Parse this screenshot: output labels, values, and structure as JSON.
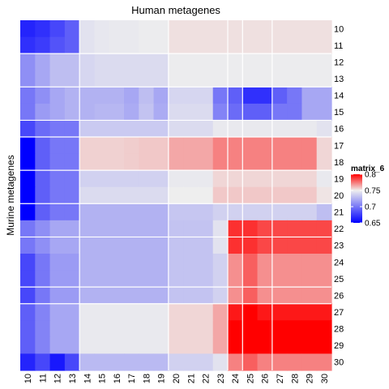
{
  "chart_data": {
    "type": "heatmap",
    "title": "Human metagenes",
    "ylabel": "Murine metagenes",
    "x_labels": [
      "10",
      "11",
      "12",
      "13",
      "14",
      "15",
      "16",
      "17",
      "18",
      "19",
      "20",
      "21",
      "22",
      "23",
      "24",
      "25",
      "26",
      "27",
      "28",
      "29",
      "30"
    ],
    "y_labels": [
      "10",
      "11",
      "12",
      "13",
      "14",
      "15",
      "16",
      "17",
      "18",
      "19",
      "20",
      "21",
      "22",
      "23",
      "24",
      "25",
      "26",
      "27",
      "28",
      "29",
      "30"
    ],
    "legend": {
      "title": "matrix_6",
      "breaks": [
        "0.8",
        "0.75",
        "0.7",
        "0.65"
      ],
      "range": [
        0.65,
        0.8
      ],
      "colors": {
        "low": "#0000ff",
        "mid": "#eeeeee",
        "high": "#ff0000"
      },
      "mid_value": 0.75
    },
    "column_groups": [
      [
        0,
        3
      ],
      [
        4,
        9
      ],
      [
        10,
        13
      ],
      [
        14,
        14
      ],
      [
        15,
        16
      ],
      [
        17,
        20
      ]
    ],
    "row_groups": [
      [
        0,
        1
      ],
      [
        2,
        3
      ],
      [
        4,
        5
      ],
      [
        6,
        6
      ],
      [
        7,
        8
      ],
      [
        9,
        10
      ],
      [
        11,
        12
      ],
      [
        13,
        15
      ],
      [
        16,
        16
      ],
      [
        17,
        19
      ]
    ],
    "values": [
      [
        0.665,
        0.67,
        0.68,
        0.69,
        0.745,
        0.747,
        0.748,
        0.748,
        0.749,
        0.749,
        0.753,
        0.753,
        0.753,
        0.753,
        0.753,
        0.753,
        0.753,
        0.753,
        0.753,
        0.753,
        0.753
      ],
      [
        0.67,
        0.675,
        0.685,
        0.69,
        0.745,
        0.747,
        0.748,
        0.748,
        0.749,
        0.749,
        0.753,
        0.753,
        0.753,
        0.753,
        0.753,
        0.753,
        0.753,
        0.753,
        0.753,
        0.753,
        0.753
      ],
      [
        0.71,
        0.72,
        0.73,
        0.73,
        0.74,
        0.742,
        0.742,
        0.742,
        0.742,
        0.742,
        0.749,
        0.749,
        0.749,
        0.749,
        0.749,
        0.749,
        0.749,
        0.749,
        0.749,
        0.749,
        0.749
      ],
      [
        0.71,
        0.72,
        0.73,
        0.73,
        0.74,
        0.742,
        0.742,
        0.742,
        0.742,
        0.742,
        0.749,
        0.749,
        0.749,
        0.749,
        0.749,
        0.749,
        0.749,
        0.749,
        0.749,
        0.749,
        0.749
      ],
      [
        0.7,
        0.71,
        0.72,
        0.725,
        0.725,
        0.725,
        0.725,
        0.72,
        0.73,
        0.72,
        0.74,
        0.74,
        0.74,
        0.7,
        0.69,
        0.67,
        0.67,
        0.69,
        0.7,
        0.72,
        0.72
      ],
      [
        0.7,
        0.715,
        0.72,
        0.725,
        0.725,
        0.727,
        0.727,
        0.722,
        0.732,
        0.722,
        0.742,
        0.742,
        0.742,
        0.705,
        0.695,
        0.69,
        0.69,
        0.7,
        0.7,
        0.72,
        0.72
      ],
      [
        0.68,
        0.695,
        0.7,
        0.7,
        0.735,
        0.735,
        0.735,
        0.735,
        0.735,
        0.735,
        0.742,
        0.742,
        0.742,
        0.748,
        0.748,
        0.748,
        0.748,
        0.748,
        0.748,
        0.748,
        0.745
      ],
      [
        0.65,
        0.69,
        0.7,
        0.7,
        0.756,
        0.756,
        0.756,
        0.757,
        0.758,
        0.758,
        0.765,
        0.765,
        0.765,
        0.773,
        0.773,
        0.773,
        0.773,
        0.773,
        0.773,
        0.773,
        0.755
      ],
      [
        0.65,
        0.69,
        0.7,
        0.7,
        0.756,
        0.756,
        0.756,
        0.757,
        0.758,
        0.758,
        0.765,
        0.765,
        0.765,
        0.773,
        0.773,
        0.773,
        0.773,
        0.773,
        0.773,
        0.773,
        0.755
      ],
      [
        0.65,
        0.69,
        0.7,
        0.7,
        0.738,
        0.738,
        0.738,
        0.738,
        0.738,
        0.738,
        0.748,
        0.748,
        0.748,
        0.755,
        0.755,
        0.755,
        0.755,
        0.755,
        0.755,
        0.755,
        0.748
      ],
      [
        0.65,
        0.69,
        0.7,
        0.7,
        0.742,
        0.742,
        0.742,
        0.742,
        0.742,
        0.742,
        0.75,
        0.75,
        0.75,
        0.758,
        0.758,
        0.758,
        0.758,
        0.758,
        0.758,
        0.758,
        0.752
      ],
      [
        0.65,
        0.69,
        0.7,
        0.7,
        0.725,
        0.725,
        0.725,
        0.725,
        0.725,
        0.725,
        0.733,
        0.733,
        0.733,
        0.738,
        0.738,
        0.738,
        0.738,
        0.738,
        0.738,
        0.738,
        0.73
      ],
      [
        0.7,
        0.71,
        0.72,
        0.72,
        0.725,
        0.725,
        0.725,
        0.725,
        0.725,
        0.725,
        0.732,
        0.732,
        0.732,
        0.745,
        0.79,
        0.79,
        0.785,
        0.785,
        0.785,
        0.785,
        0.785
      ],
      [
        0.7,
        0.71,
        0.72,
        0.72,
        0.725,
        0.725,
        0.725,
        0.725,
        0.725,
        0.725,
        0.732,
        0.732,
        0.732,
        0.745,
        0.79,
        0.79,
        0.785,
        0.785,
        0.785,
        0.785,
        0.785
      ],
      [
        0.68,
        0.7,
        0.715,
        0.715,
        0.725,
        0.725,
        0.725,
        0.725,
        0.725,
        0.725,
        0.732,
        0.732,
        0.732,
        0.738,
        0.77,
        0.78,
        0.77,
        0.77,
        0.77,
        0.77,
        0.77
      ],
      [
        0.68,
        0.7,
        0.715,
        0.715,
        0.725,
        0.725,
        0.725,
        0.725,
        0.725,
        0.725,
        0.732,
        0.732,
        0.732,
        0.738,
        0.77,
        0.78,
        0.77,
        0.77,
        0.77,
        0.77,
        0.77
      ],
      [
        0.68,
        0.7,
        0.715,
        0.715,
        0.725,
        0.725,
        0.725,
        0.725,
        0.725,
        0.725,
        0.732,
        0.732,
        0.732,
        0.738,
        0.77,
        0.78,
        0.77,
        0.77,
        0.77,
        0.77,
        0.77
      ],
      [
        0.69,
        0.705,
        0.72,
        0.72,
        0.748,
        0.748,
        0.748,
        0.748,
        0.748,
        0.748,
        0.755,
        0.755,
        0.755,
        0.765,
        0.795,
        0.8,
        0.795,
        0.795,
        0.795,
        0.795,
        0.795
      ],
      [
        0.69,
        0.705,
        0.72,
        0.72,
        0.748,
        0.748,
        0.748,
        0.748,
        0.748,
        0.748,
        0.755,
        0.755,
        0.755,
        0.765,
        0.8,
        0.8,
        0.8,
        0.8,
        0.8,
        0.8,
        0.8
      ],
      [
        0.69,
        0.705,
        0.72,
        0.72,
        0.748,
        0.748,
        0.748,
        0.748,
        0.748,
        0.748,
        0.755,
        0.755,
        0.755,
        0.765,
        0.8,
        0.8,
        0.8,
        0.8,
        0.8,
        0.8,
        0.8
      ],
      [
        0.665,
        0.68,
        0.66,
        0.68,
        0.728,
        0.728,
        0.728,
        0.728,
        0.728,
        0.728,
        0.738,
        0.738,
        0.738,
        0.745,
        0.773,
        0.78,
        0.773,
        0.773,
        0.773,
        0.773,
        0.773
      ]
    ]
  }
}
